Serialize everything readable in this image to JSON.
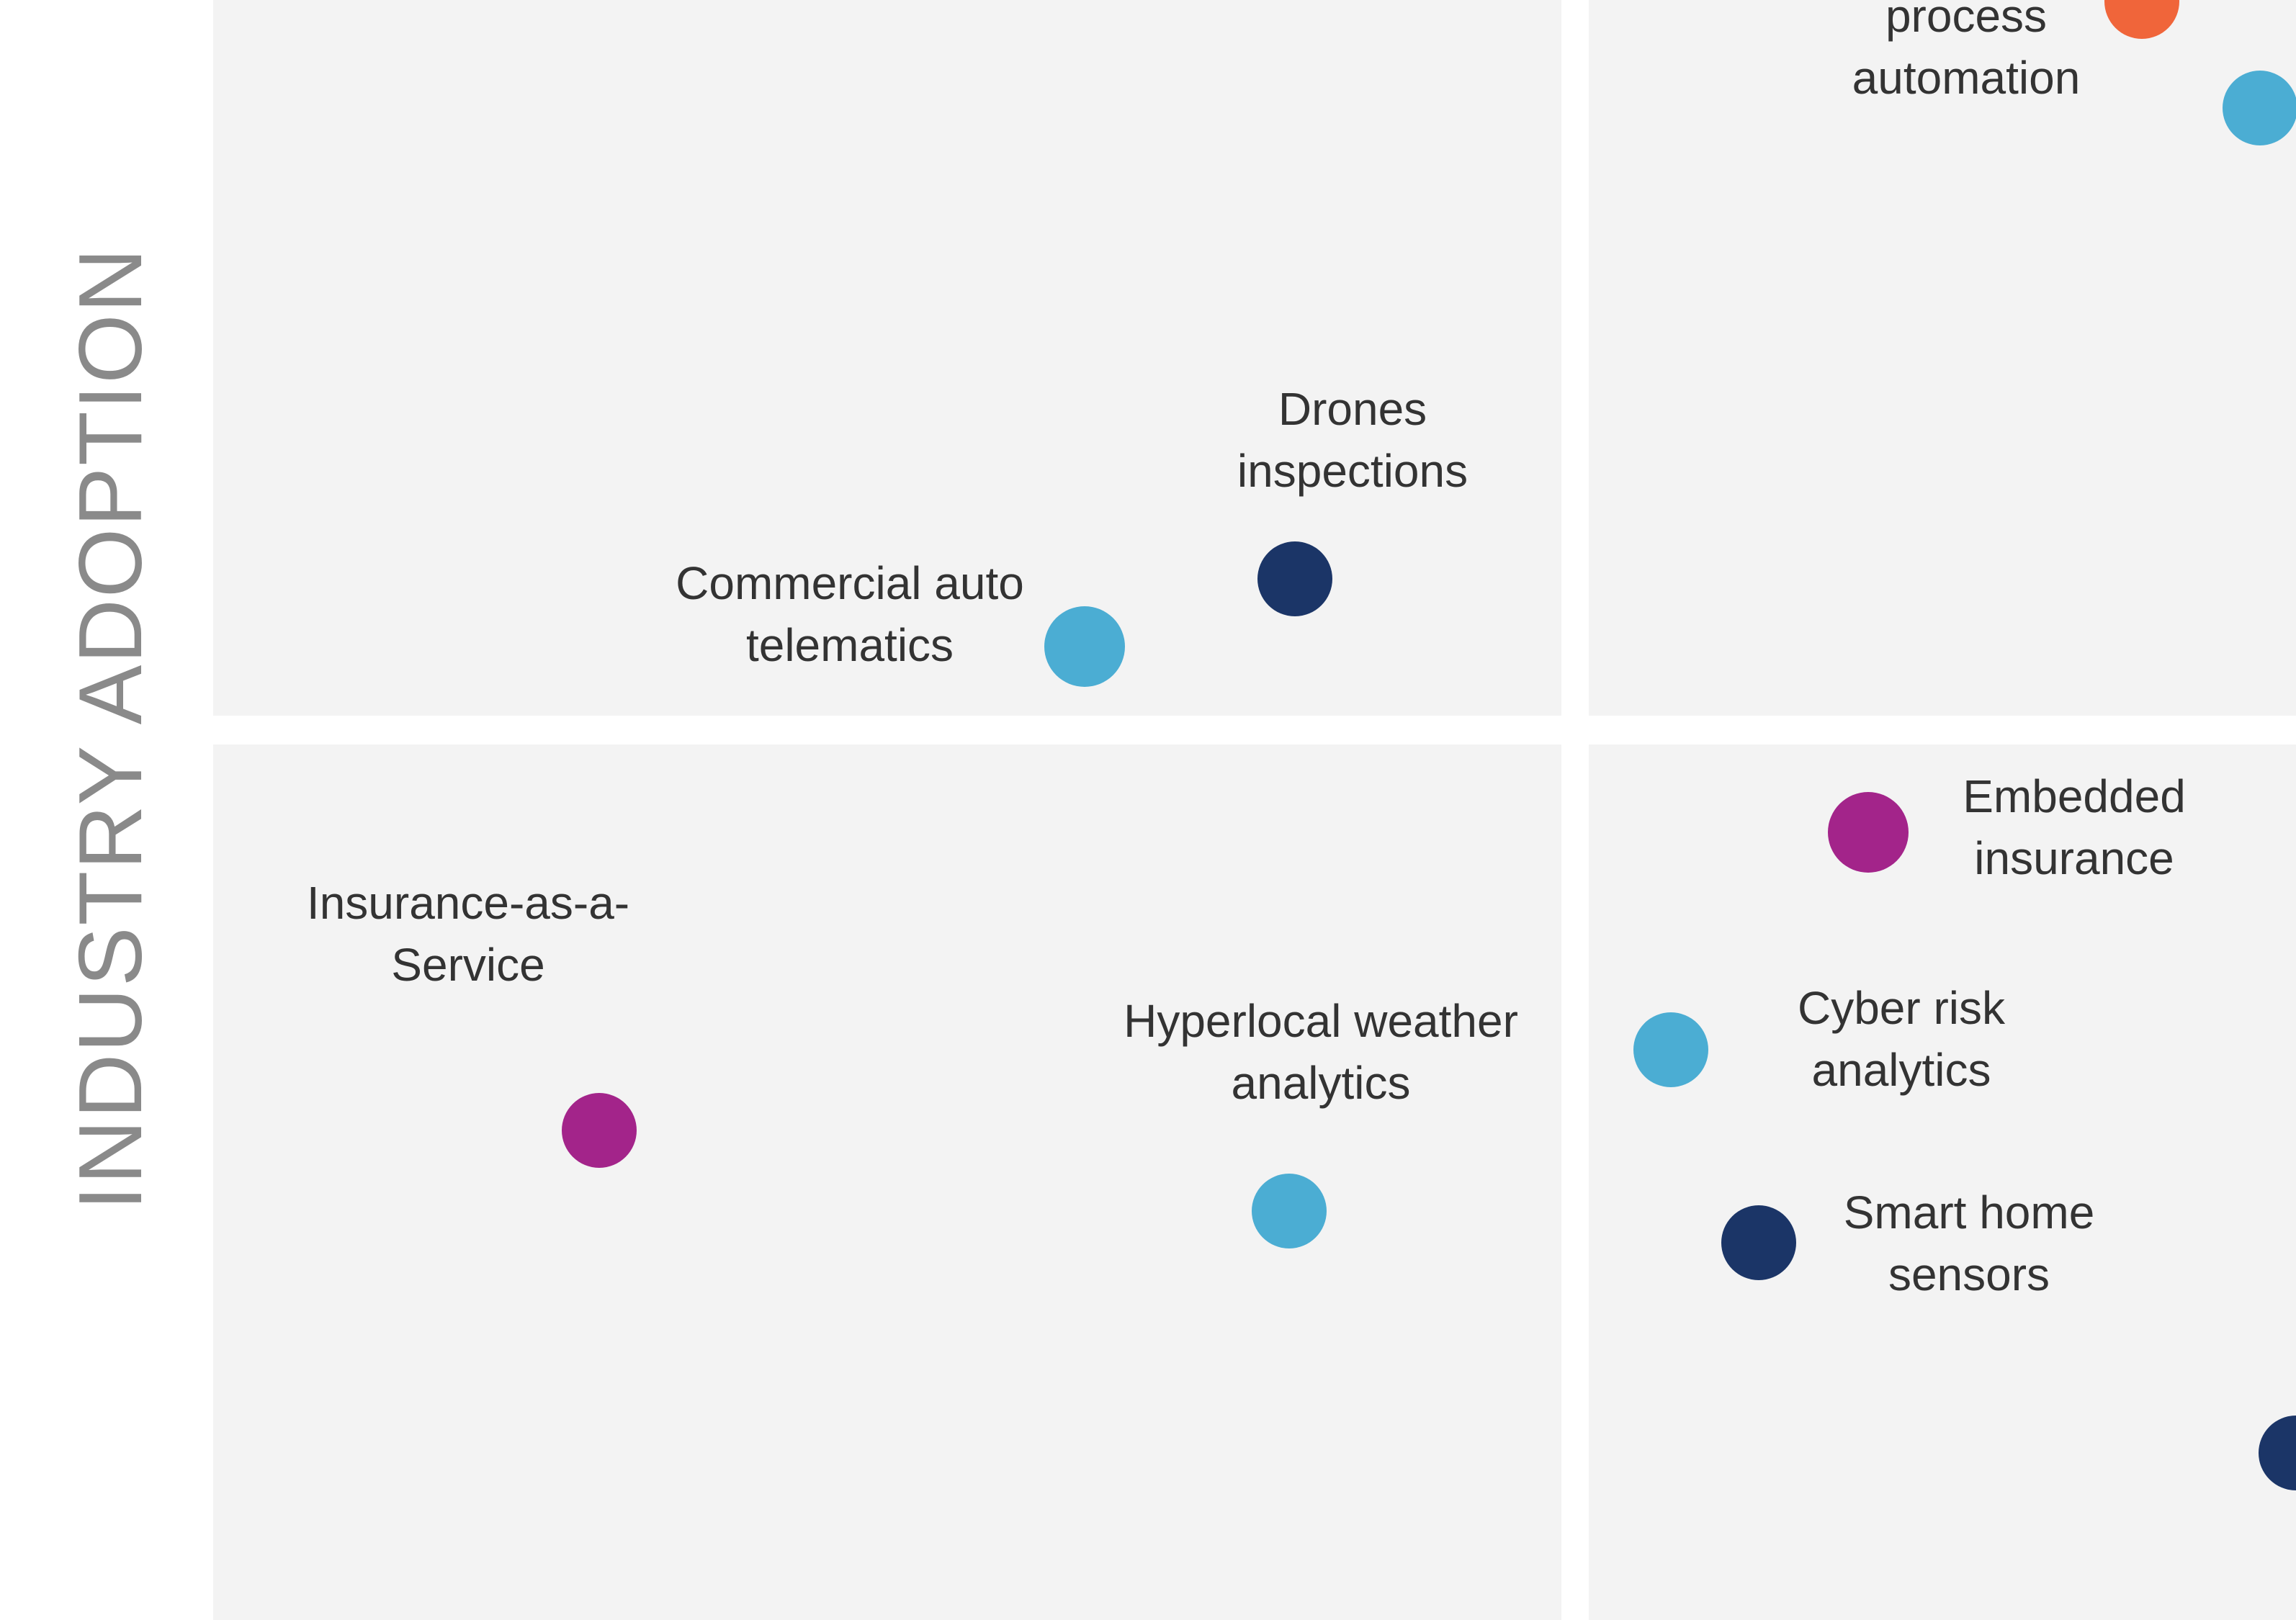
{
  "chart_data": {
    "type": "scatter",
    "ylabel": "INDUSTRY ADOPTION",
    "colors": {
      "navy": "#1b3567",
      "sky": "#4badd3",
      "magenta": "#a3248a",
      "orange": "#f0653a"
    },
    "points": [
      {
        "label": [
          "process",
          "automation"
        ],
        "color": "orange"
      },
      {
        "label": [],
        "color": "sky"
      },
      {
        "label": [
          "Drones",
          "inspections"
        ],
        "color": "navy"
      },
      {
        "label": [
          "Commercial auto",
          "telematics"
        ],
        "color": "sky"
      },
      {
        "label": [
          "Embedded",
          "insurance"
        ],
        "color": "magenta"
      },
      {
        "label": [
          "Insurance-as-a-",
          "Service"
        ],
        "color": "magenta"
      },
      {
        "label": [
          "Hyperlocal weather",
          "analytics"
        ],
        "color": "sky"
      },
      {
        "label": [
          "Cyber risk",
          "analytics"
        ],
        "color": "sky"
      },
      {
        "label": [
          "Smart home",
          "sensors"
        ],
        "color": "navy"
      },
      {
        "label": [],
        "color": "navy"
      }
    ]
  }
}
